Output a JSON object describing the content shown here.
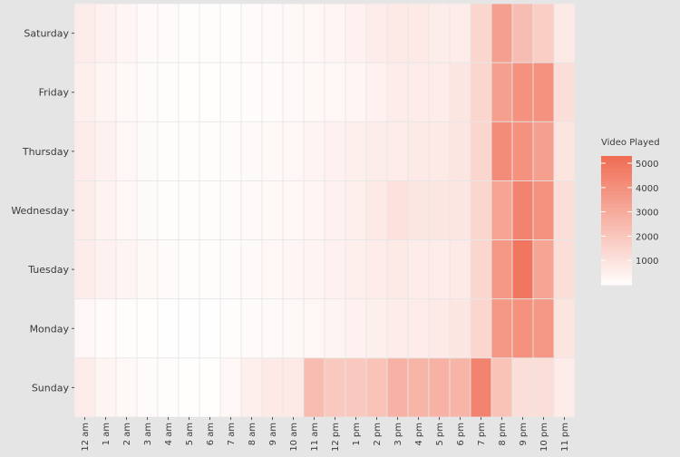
{
  "chart_data": {
    "type": "heatmap",
    "title": "",
    "xlabel": "",
    "ylabel": "",
    "x_categories": [
      "12 am",
      "1 am",
      "2 am",
      "3 am",
      "4 am",
      "5 am",
      "6 am",
      "7 am",
      "8 am",
      "9 am",
      "10 am",
      "11 am",
      "12 pm",
      "1 pm",
      "2 pm",
      "3 pm",
      "4 pm",
      "5 pm",
      "6 pm",
      "7 pm",
      "8 pm",
      "9 pm",
      "10 pm",
      "11 pm"
    ],
    "y_categories": [
      "Saturday",
      "Friday",
      "Thursday",
      "Wednesday",
      "Tuesday",
      "Monday",
      "Sunday"
    ],
    "values": [
      [
        650,
        500,
        350,
        200,
        150,
        100,
        80,
        100,
        150,
        200,
        250,
        300,
        350,
        500,
        700,
        800,
        750,
        650,
        700,
        1500,
        3500,
        2400,
        1800,
        800
      ],
      [
        600,
        400,
        250,
        150,
        80,
        50,
        50,
        80,
        120,
        150,
        200,
        250,
        300,
        350,
        500,
        700,
        700,
        700,
        900,
        1500,
        3500,
        4000,
        4000,
        1200
      ],
      [
        700,
        500,
        300,
        200,
        100,
        80,
        100,
        150,
        200,
        250,
        300,
        400,
        500,
        600,
        650,
        700,
        750,
        800,
        900,
        1500,
        4200,
        4000,
        3500,
        1000
      ],
      [
        650,
        450,
        300,
        200,
        100,
        80,
        100,
        150,
        200,
        250,
        300,
        350,
        500,
        600,
        800,
        1100,
        900,
        900,
        900,
        1500,
        3300,
        4500,
        4000,
        1200
      ],
      [
        700,
        500,
        400,
        250,
        150,
        100,
        100,
        150,
        200,
        300,
        350,
        400,
        500,
        600,
        700,
        800,
        700,
        700,
        800,
        1500,
        3800,
        5000,
        3300,
        1200
      ],
      [
        300,
        150,
        100,
        50,
        30,
        20,
        20,
        80,
        150,
        200,
        250,
        300,
        400,
        500,
        600,
        700,
        700,
        800,
        900,
        1500,
        3800,
        4000,
        3800,
        1000
      ],
      [
        700,
        400,
        250,
        150,
        100,
        50,
        50,
        300,
        600,
        800,
        800,
        2500,
        2000,
        2000,
        2200,
        2800,
        2700,
        2800,
        2700,
        4500,
        2200,
        1200,
        1200,
        700
      ]
    ],
    "color_scale": {
      "min": 0,
      "max": 5300,
      "low_color": "#ffffff",
      "high_color": "#f06e55"
    },
    "legend": {
      "title": "Video Played",
      "ticks": [
        1000,
        2000,
        3000,
        4000,
        5000
      ],
      "position": "right"
    },
    "grid": false
  }
}
